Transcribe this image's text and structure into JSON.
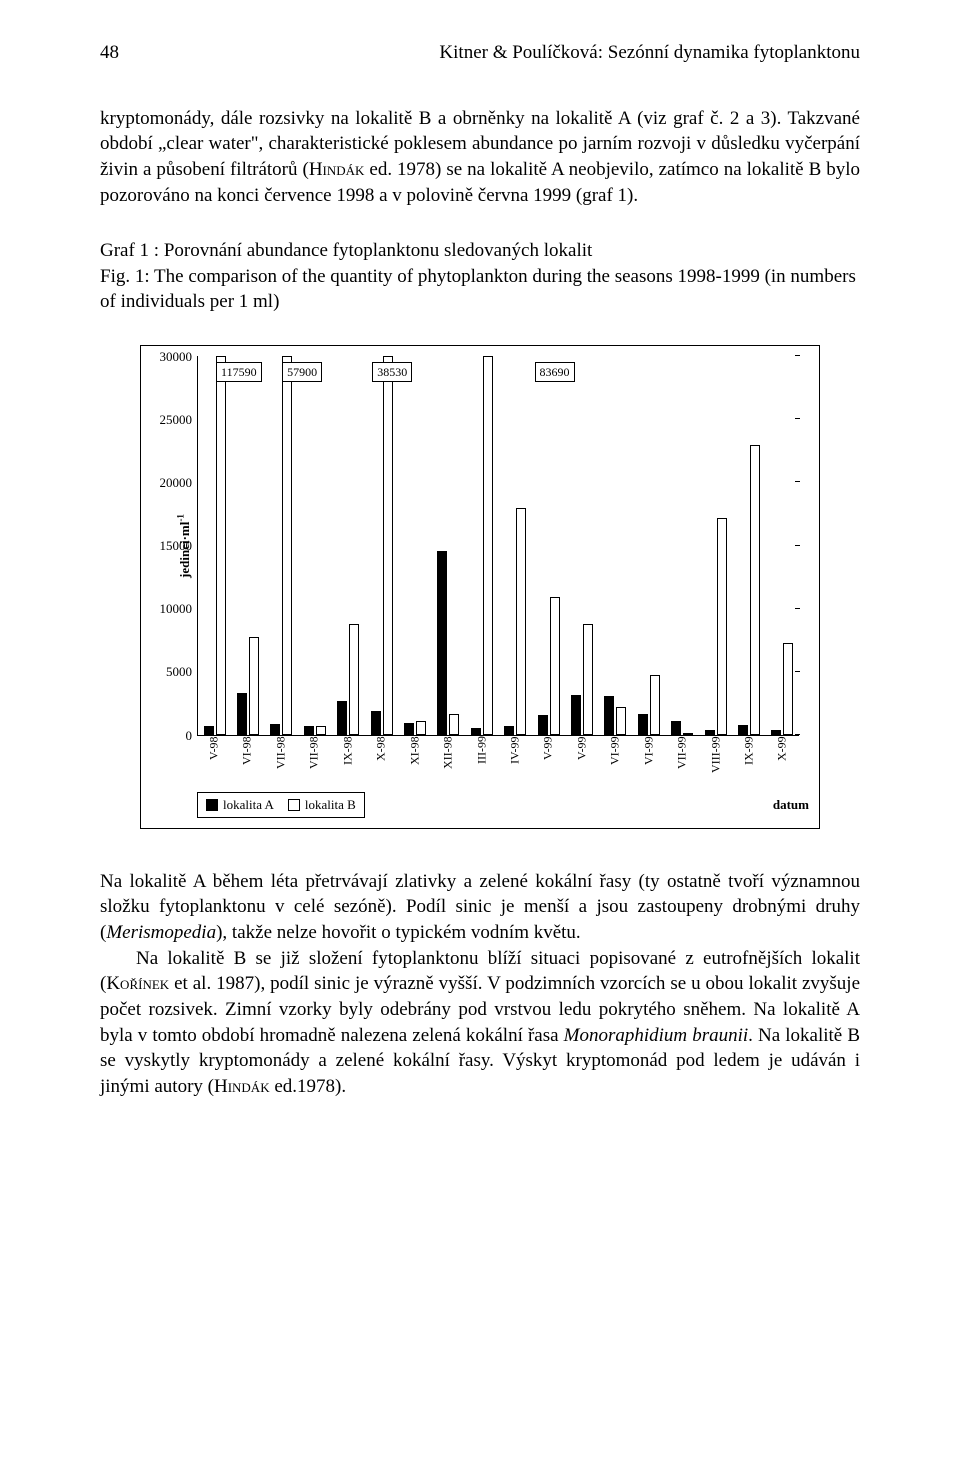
{
  "page_number": "48",
  "running_title": "Kitner & Poulíčková: Sezónní dynamika fytoplanktonu",
  "paragraph_top_1": "kryptomonády, dále rozsivky na lokalitě B a obrněnky na lokalitě A (viz graf č. 2 a 3). Takzvané období „clear water\", charakteristické poklesem abundance po jarním rozvoji v důsledku vyčerpání živin a působení filtrátorů (",
  "paragraph_top_author1": "Hindák",
  "paragraph_top_2": " ed. 1978) se na lokalitě A neobjevilo, zatímco na lokalitě B bylo pozorováno na konci července 1998 a v polovině června 1999 (graf 1).",
  "caption_cs": "Graf  1 : Porovnání abundance fytoplanktonu sledovaných lokalit",
  "caption_en": "Fig. 1:  The comparison of the quantity of phytoplankton during the seasons 1998-1999 (in numbers of individuals per 1 ml)",
  "chart": {
    "type": "bar",
    "y_max": 30000,
    "y_ticks": [
      0,
      5000,
      10000,
      15000,
      20000,
      25000,
      30000
    ],
    "y_axis_label_html": "jedinci·ml",
    "y_axis_label_sup": "-1",
    "x_axis_label": "datum",
    "bar_fill_color": "#000000",
    "bar_hollow_color": "#ffffff",
    "bar_border_color": "#000000",
    "background_color": "#ffffff",
    "categories": [
      "V-98",
      "VI-98",
      "VII-98",
      "VII-98",
      "IX-98",
      "X-98",
      "XI-98",
      "XII-98",
      "III-99",
      "IV-99",
      "V-99",
      "V-99",
      "VI-99",
      "VI-99",
      "VII-99",
      "VIII-99",
      "IX-99",
      "X-99"
    ],
    "series_a": [
      700,
      3300,
      900,
      700,
      2700,
      1900,
      1000,
      14600,
      600,
      700,
      1600,
      3200,
      3100,
      1700,
      1100,
      400,
      800,
      400
    ],
    "series_b": [
      117590,
      7800,
      57900,
      700,
      8800,
      38530,
      1100,
      1700,
      83690,
      18000,
      10900,
      8800,
      2200,
      4800,
      100,
      17200,
      23000,
      7300
    ],
    "overflow_labels": [
      {
        "index": 0,
        "text": "117590",
        "offset_pct": 3
      },
      {
        "index": 2,
        "text": "57900",
        "offset_pct": 14
      },
      {
        "index": 5,
        "text": "38530",
        "offset_pct": 29
      },
      {
        "index": 8,
        "text": "83690",
        "offset_pct": 56
      }
    ],
    "legend_a": "lokalita A",
    "legend_b": "lokalita B"
  },
  "paragraph_bottom_1a": "Na lokalitě A během léta přetrvávají zlativky a zelené kokální řasy (ty ostatně tvoří významnou složku fytoplanktonu v celé sezóně). Podíl sinic je menší a jsou zastoupeny drobnými druhy (",
  "paragraph_bottom_1_ital": "Merismopedia",
  "paragraph_bottom_1b": "), takže nelze hovořit o typickém vodním květu.",
  "paragraph_bottom_2a": "Na lokalitě B se již složení fytoplanktonu blíží situaci popisované z eutrofnějších lokalit (",
  "paragraph_bottom_2_auth": "Kořínek",
  "paragraph_bottom_2b": " et al. 1987), podíl sinic je výrazně vyšší. V podzimních vzorcích se u obou lokalit zvyšuje počet rozsivek. Zimní vzorky byly odebrány pod vrstvou ledu pokrytého sněhem. Na lokalitě A byla v tomto období hromadně nalezena zelená kokální řasa ",
  "paragraph_bottom_2_ital": "Monoraphidium braunii",
  "paragraph_bottom_2c": ". Na lokalitě B se vyskytly kryptomonády a zelené kokální řasy. Výskyt kryptomonád pod ledem je udáván i jinými autory (",
  "paragraph_bottom_2_auth2": "Hindák",
  "paragraph_bottom_2d": " ed.1978)."
}
